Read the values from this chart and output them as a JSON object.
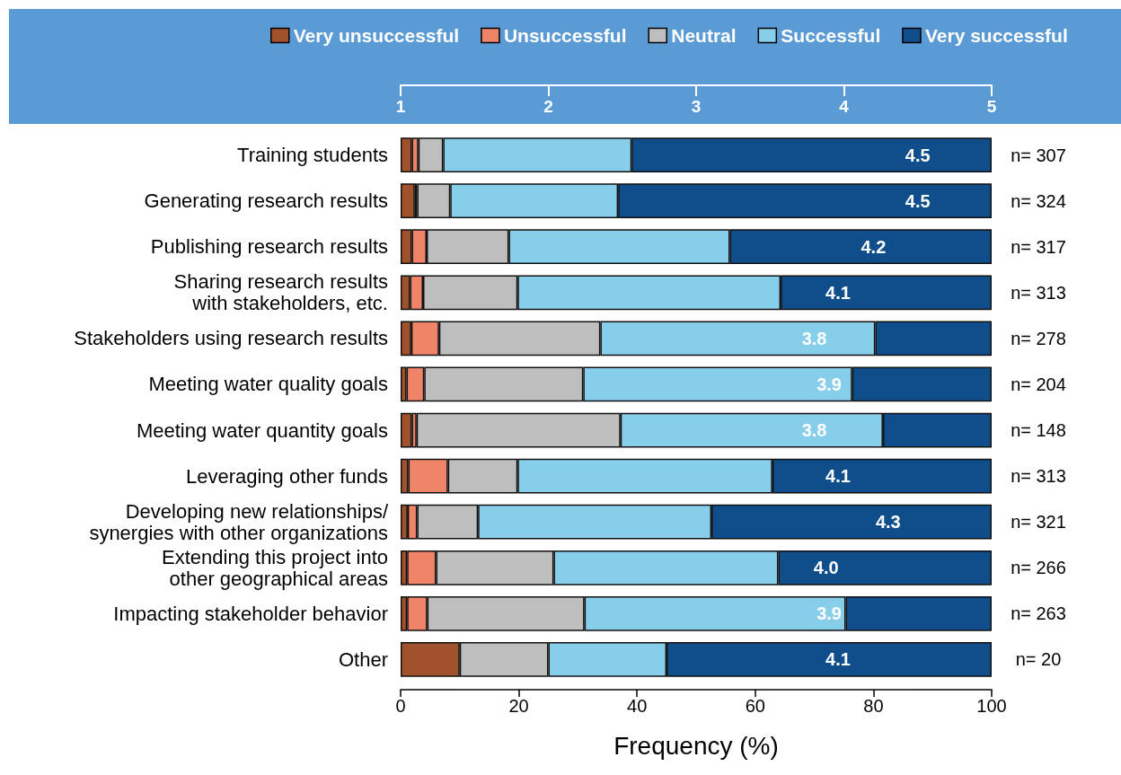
{
  "chart_data": {
    "type": "bar",
    "orientation": "horizontal",
    "stacked": true,
    "categories": [
      "Training students",
      "Generating research results",
      "Publishing research results",
      "Sharing research results\nwith stakeholders, etc.",
      "Stakeholders using research results",
      "Meeting water quality goals",
      "Meeting water quantity goals",
      "Leveraging other funds",
      "Developing new relationships/\nsynergies with other organizations",
      "Extending this project into\nother geographical areas",
      "Impacting stakeholder behavior",
      "Other"
    ],
    "series": [
      {
        "name": "Very unsuccessful",
        "color": "#a0522d",
        "values": [
          1.9,
          2.4,
          1.9,
          1.6,
          1.8,
          1.0,
          1.9,
          1.3,
          1.2,
          1.1,
          1.1,
          10.0
        ]
      },
      {
        "name": "Unsuccessful",
        "color": "#f08468",
        "values": [
          1.1,
          0.4,
          2.5,
          2.2,
          4.7,
          3.0,
          0.8,
          6.7,
          1.6,
          4.9,
          3.4,
          null
        ]
      },
      {
        "name": "Neutral",
        "color": "#bebebe",
        "values": [
          4.2,
          5.6,
          13.9,
          16.0,
          27.3,
          26.9,
          34.5,
          11.8,
          10.3,
          19.9,
          26.6,
          15.0
        ]
      },
      {
        "name": "Successful",
        "color": "#87ceeb",
        "values": [
          31.9,
          28.4,
          37.4,
          44.5,
          46.5,
          45.5,
          44.4,
          43.1,
          39.5,
          38.0,
          44.2,
          20.0
        ]
      },
      {
        "name": "Very successful",
        "color": "#104e8b",
        "values": [
          60.9,
          63.2,
          44.3,
          35.7,
          19.7,
          23.6,
          18.4,
          37.1,
          47.4,
          36.1,
          24.7,
          55.0
        ]
      }
    ],
    "xlim": [
      0,
      100
    ],
    "xticks": [
      0,
      20,
      40,
      60,
      80,
      100
    ],
    "xlabel": "Frequency (%)",
    "x2lim": [
      1,
      5
    ],
    "x2ticks": [
      1,
      2,
      3,
      4,
      5
    ],
    "legend": "top",
    "grid": false,
    "annotations": [
      {
        "text": "4.5",
        "x": 87.5,
        "y": "Training students"
      },
      {
        "text": "4.5",
        "x": 87.5,
        "y": "Generating research results"
      },
      {
        "text": "4.2",
        "x": 80,
        "y": "Publishing research results"
      },
      {
        "text": "4.1",
        "x": 74,
        "y": "Sharing research results\nwith stakeholders, etc."
      },
      {
        "text": "3.8",
        "x": 70,
        "y": "Stakeholders using research results"
      },
      {
        "text": "3.9",
        "x": 72.5,
        "y": "Meeting water quality goals"
      },
      {
        "text": "3.8",
        "x": 70,
        "y": "Meeting water quantity goals"
      },
      {
        "text": "4.1",
        "x": 74,
        "y": "Leveraging other funds"
      },
      {
        "text": "4.3",
        "x": 82.5,
        "y": "Developing new relationships/\nsynergies with other organizations"
      },
      {
        "text": "4.0",
        "x": 72,
        "y": "Extending this project into\nother geographical areas"
      },
      {
        "text": "3.9",
        "x": 72.5,
        "y": "Impacting stakeholder behavior"
      },
      {
        "text": "4.1",
        "x": 74,
        "y": "Other"
      },
      "n= 307",
      "n= 324",
      "n= 317",
      "n= 313",
      "n= 278",
      "n= 204",
      "n= 148",
      "n= 313",
      "n= 321",
      "n= 266",
      "n= 263",
      "n= 20"
    ]
  }
}
